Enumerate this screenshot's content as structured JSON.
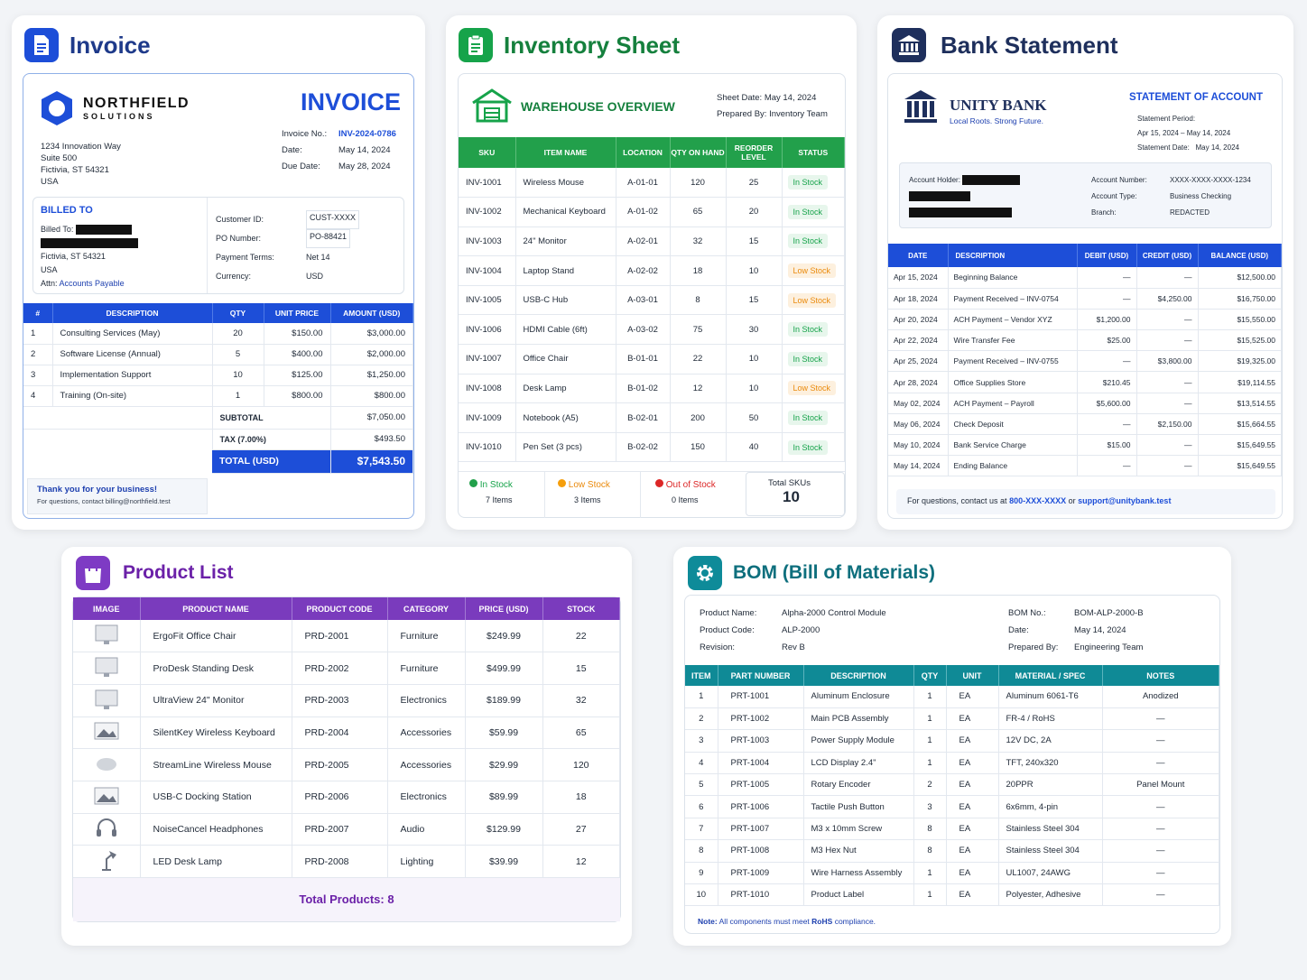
{
  "invoice": {
    "card_title": "Invoice",
    "company_name": "NORTHFIELD",
    "company_sub": "SOLUTIONS",
    "heading": "INVOICE",
    "address": [
      "1234 Innovation Way",
      "Suite 500",
      "Fictivia, ST 54321",
      "USA"
    ],
    "meta": [
      {
        "label": "Invoice No.:",
        "value": "INV-2024-0786"
      },
      {
        "label": "Date:",
        "value": "May 14, 2024"
      },
      {
        "label": "Due Date:",
        "value": "May 28, 2024"
      }
    ],
    "billed_to_heading": "BILLED TO",
    "billed_to_label": "Billed To:",
    "billed_city": "Fictivia, ST 54321",
    "billed_country": "USA",
    "attn_label": "Attn:",
    "attn_value": "Accounts Payable",
    "customer": [
      {
        "label": "Customer ID:",
        "value": "CUST-XXXX"
      },
      {
        "label": "PO Number:",
        "value": "PO-88421"
      },
      {
        "label": "Payment Terms:",
        "value": "Net 14"
      },
      {
        "label": "Currency:",
        "value": "USD"
      }
    ],
    "columns": [
      "#",
      "DESCRIPTION",
      "QTY",
      "UNIT PRICE",
      "AMOUNT (USD)"
    ],
    "rows": [
      [
        "1",
        "Consulting Services (May)",
        "20",
        "$150.00",
        "$3,000.00"
      ],
      [
        "2",
        "Software License (Annual)",
        "5",
        "$400.00",
        "$2,000.00"
      ],
      [
        "3",
        "Implementation Support",
        "10",
        "$125.00",
        "$1,250.00"
      ],
      [
        "4",
        "Training (On-site)",
        "1",
        "$800.00",
        "$800.00"
      ]
    ],
    "subtotal_label": "SUBTOTAL",
    "subtotal": "$7,050.00",
    "tax_label": "TAX (7.00%)",
    "tax": "$493.50",
    "total_label": "TOTAL (USD)",
    "total": "$7,543.50",
    "thanks": "Thank you for your business!",
    "contact": "For questions, contact billing@northfield.test"
  },
  "inventory": {
    "card_title": "Inventory Sheet",
    "overview": "WAREHOUSE OVERVIEW",
    "sheet_date_label": "Sheet Date:",
    "sheet_date": "May 14, 2024",
    "prepared_label": "Prepared By:",
    "prepared": "Inventory Team",
    "columns": [
      "SKU",
      "ITEM NAME",
      "LOCATION",
      "QTY ON HAND",
      "REORDER LEVEL",
      "STATUS"
    ],
    "rows": [
      [
        "INV-1001",
        "Wireless Mouse",
        "A-01-01",
        "120",
        "25",
        "In Stock"
      ],
      [
        "INV-1002",
        "Mechanical Keyboard",
        "A-01-02",
        "65",
        "20",
        "In Stock"
      ],
      [
        "INV-1003",
        "24\" Monitor",
        "A-02-01",
        "32",
        "15",
        "In Stock"
      ],
      [
        "INV-1004",
        "Laptop Stand",
        "A-02-02",
        "18",
        "10",
        "Low Stock"
      ],
      [
        "INV-1005",
        "USB-C Hub",
        "A-03-01",
        "8",
        "15",
        "Low Stock"
      ],
      [
        "INV-1006",
        "HDMI Cable (6ft)",
        "A-03-02",
        "75",
        "30",
        "In Stock"
      ],
      [
        "INV-1007",
        "Office Chair",
        "B-01-01",
        "22",
        "10",
        "In Stock"
      ],
      [
        "INV-1008",
        "Desk Lamp",
        "B-01-02",
        "12",
        "10",
        "Low Stock"
      ],
      [
        "INV-1009",
        "Notebook (A5)",
        "B-02-01",
        "200",
        "50",
        "In Stock"
      ],
      [
        "INV-1010",
        "Pen Set (3 pcs)",
        "B-02-02",
        "150",
        "40",
        "In Stock"
      ]
    ],
    "summary": [
      {
        "label": "In Stock",
        "value": "7 Items",
        "color": "#22a04b"
      },
      {
        "label": "Low Stock",
        "value": "3 Items",
        "color": "#f59e0b"
      },
      {
        "label": "Out of Stock",
        "value": "0 Items",
        "color": "#dc2626"
      }
    ],
    "total_label": "Total SKUs",
    "total": "10"
  },
  "bank": {
    "card_title": "Bank Statement",
    "bank_name": "UNITY BANK",
    "tagline": "Local Roots. Strong Future.",
    "statement_title": "STATEMENT OF ACCOUNT",
    "period_label": "Statement Period:",
    "period": "Apr 15, 2024 – May 14, 2024",
    "date_label": "Statement Date:",
    "date": "May 14, 2024",
    "holder_label": "Account Holder:",
    "account_number_label": "Account Number:",
    "account_number": "XXXX-XXXX-XXXX-1234",
    "account_type_label": "Account Type:",
    "account_type": "Business Checking",
    "branch_label": "Branch:",
    "branch": "REDACTED",
    "columns": [
      "DATE",
      "DESCRIPTION",
      "DEBIT (USD)",
      "CREDIT (USD)",
      "BALANCE (USD)"
    ],
    "rows": [
      [
        "Apr 15, 2024",
        "Beginning Balance",
        "—",
        "—",
        "$12,500.00"
      ],
      [
        "Apr 18, 2024",
        "Payment Received – INV-0754",
        "—",
        "$4,250.00",
        "$16,750.00"
      ],
      [
        "Apr 20, 2024",
        "ACH Payment – Vendor XYZ",
        "$1,200.00",
        "—",
        "$15,550.00"
      ],
      [
        "Apr 22, 2024",
        "Wire Transfer Fee",
        "$25.00",
        "—",
        "$15,525.00"
      ],
      [
        "Apr 25, 2024",
        "Payment Received – INV-0755",
        "—",
        "$3,800.00",
        "$19,325.00"
      ],
      [
        "Apr 28, 2024",
        "Office Supplies Store",
        "$210.45",
        "—",
        "$19,114.55"
      ],
      [
        "May 02, 2024",
        "ACH Payment – Payroll",
        "$5,600.00",
        "—",
        "$13,514.55"
      ],
      [
        "May 06, 2024",
        "Check Deposit",
        "—",
        "$2,150.00",
        "$15,664.55"
      ],
      [
        "May 10, 2024",
        "Bank Service Charge",
        "$15.00",
        "—",
        "$15,649.55"
      ],
      [
        "May 14, 2024",
        "Ending Balance",
        "—",
        "—",
        "$15,649.55"
      ]
    ],
    "footer_prefix": "For questions, contact us at",
    "footer_phone": "800-XXX-XXXX",
    "footer_or": "or",
    "footer_email": "support@unitybank.test"
  },
  "product": {
    "card_title": "Product List",
    "columns": [
      "IMAGE",
      "PRODUCT NAME",
      "PRODUCT CODE",
      "CATEGORY",
      "PRICE (USD)",
      "STOCK"
    ],
    "rows": [
      {
        "icon": "monitor-thumbnail-icon",
        "cells": [
          "ErgoFit Office Chair",
          "PRD-2001",
          "Furniture",
          "$249.99",
          "22"
        ]
      },
      {
        "icon": "monitor-thumbnail-icon",
        "cells": [
          "ProDesk Standing Desk",
          "PRD-2002",
          "Furniture",
          "$499.99",
          "15"
        ]
      },
      {
        "icon": "monitor-thumbnail-icon",
        "cells": [
          "UltraView 24\" Monitor",
          "PRD-2003",
          "Electronics",
          "$189.99",
          "32"
        ]
      },
      {
        "icon": "image-thumbnail-icon",
        "cells": [
          "SilentKey Wireless Keyboard",
          "PRD-2004",
          "Accessories",
          "$59.99",
          "65"
        ]
      },
      {
        "icon": "mouse-thumbnail-icon",
        "cells": [
          "StreamLine Wireless Mouse",
          "PRD-2005",
          "Accessories",
          "$29.99",
          "120"
        ]
      },
      {
        "icon": "image-thumbnail-icon",
        "cells": [
          "USB-C Docking Station",
          "PRD-2006",
          "Electronics",
          "$89.99",
          "18"
        ]
      },
      {
        "icon": "headphones-thumbnail-icon",
        "cells": [
          "NoiseCancel Headphones",
          "PRD-2007",
          "Audio",
          "$129.99",
          "27"
        ]
      },
      {
        "icon": "lamp-thumbnail-icon",
        "cells": [
          "LED Desk Lamp",
          "PRD-2008",
          "Lighting",
          "$39.99",
          "12"
        ]
      }
    ],
    "total_label": "Total Products:",
    "total": "8"
  },
  "bom": {
    "card_title": "BOM (Bill of Materials)",
    "left_meta": [
      {
        "label": "Product Name:",
        "value": "Alpha-2000 Control Module"
      },
      {
        "label": "Product Code:",
        "value": "ALP-2000"
      },
      {
        "label": "Revision:",
        "value": "Rev B"
      }
    ],
    "right_meta": [
      {
        "label": "BOM No.:",
        "value": "BOM-ALP-2000-B"
      },
      {
        "label": "Date:",
        "value": "May 14, 2024"
      },
      {
        "label": "Prepared By:",
        "value": "Engineering Team"
      }
    ],
    "columns": [
      "ITEM",
      "PART NUMBER",
      "DESCRIPTION",
      "QTY",
      "UNIT",
      "MATERIAL / SPEC",
      "NOTES"
    ],
    "rows": [
      [
        "1",
        "PRT-1001",
        "Aluminum Enclosure",
        "1",
        "EA",
        "Aluminum 6061-T6",
        "Anodized"
      ],
      [
        "2",
        "PRT-1002",
        "Main PCB Assembly",
        "1",
        "EA",
        "FR-4 / RoHS",
        "—"
      ],
      [
        "3",
        "PRT-1003",
        "Power Supply Module",
        "1",
        "EA",
        "12V DC, 2A",
        "—"
      ],
      [
        "4",
        "PRT-1004",
        "LCD Display 2.4\"",
        "1",
        "EA",
        "TFT, 240x320",
        "—"
      ],
      [
        "5",
        "PRT-1005",
        "Rotary Encoder",
        "2",
        "EA",
        "20PPR",
        "Panel Mount"
      ],
      [
        "6",
        "PRT-1006",
        "Tactile Push Button",
        "3",
        "EA",
        "6x6mm, 4-pin",
        "—"
      ],
      [
        "7",
        "PRT-1007",
        "M3 x 10mm Screw",
        "8",
        "EA",
        "Stainless Steel 304",
        "—"
      ],
      [
        "8",
        "PRT-1008",
        "M3 Hex Nut",
        "8",
        "EA",
        "Stainless Steel 304",
        "—"
      ],
      [
        "9",
        "PRT-1009",
        "Wire Harness Assembly",
        "1",
        "EA",
        "UL1007, 24AWG",
        "—"
      ],
      [
        "10",
        "PRT-1010",
        "Product Label",
        "1",
        "EA",
        "Polyester, Adhesive",
        "—"
      ]
    ],
    "note_label": "Note:",
    "note_text": "All components must meet",
    "note_bold": "RoHS",
    "note_end": "compliance."
  }
}
